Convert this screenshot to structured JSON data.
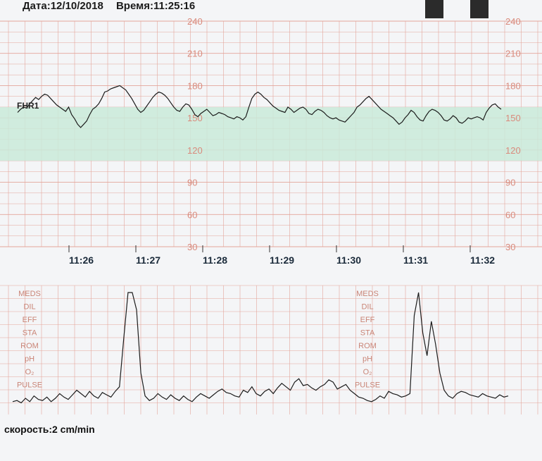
{
  "header": {
    "date_label": "Дата:12/10/2018",
    "time_label": "Время:11:25:16"
  },
  "footer": {
    "speed_label": "скорость:2 cm/min"
  },
  "colors": {
    "grid": "#e3a59a",
    "band": "#c9ead9",
    "trace": "#1c1c1c",
    "paper": "#f4f5f7"
  },
  "chart_data": [
    {
      "type": "line",
      "title": "",
      "series": [
        {
          "name": "FHR1",
          "values": [
            155,
            158,
            160,
            159,
            163,
            166,
            169,
            167,
            170,
            172,
            171,
            168,
            165,
            162,
            160,
            158,
            156,
            160,
            153,
            149,
            144,
            141,
            144,
            147,
            153,
            158,
            160,
            163,
            168,
            174,
            175,
            177,
            178,
            179,
            180,
            178,
            176,
            172,
            168,
            163,
            158,
            155,
            157,
            161,
            165,
            169,
            172,
            174,
            173,
            171,
            168,
            164,
            160,
            157,
            156,
            160,
            163,
            162,
            158,
            153,
            151,
            154,
            156,
            158,
            155,
            152,
            153,
            155,
            154,
            153,
            151,
            150,
            149,
            151,
            150,
            148,
            151,
            160,
            168,
            172,
            174,
            172,
            169,
            167,
            164,
            161,
            159,
            157,
            156,
            155,
            160,
            158,
            155,
            157,
            159,
            160,
            158,
            154,
            153,
            156,
            158,
            157,
            155,
            152,
            150,
            149,
            150,
            148,
            147,
            146,
            149,
            152,
            155,
            160,
            162,
            165,
            168,
            170,
            167,
            164,
            161,
            158,
            156,
            154,
            152,
            150,
            147,
            144,
            146,
            150,
            153,
            157,
            155,
            151,
            148,
            147,
            152,
            156,
            158,
            157,
            155,
            152,
            148,
            147,
            149,
            152,
            150,
            146,
            145,
            147,
            150,
            149,
            150,
            151,
            150,
            148,
            155,
            159,
            162,
            163,
            160,
            158
          ]
        }
      ],
      "y_left_ticks": [
        240,
        210,
        180,
        150,
        120,
        90,
        60,
        30
      ],
      "y_right_ticks": [
        240,
        210,
        180,
        150,
        120,
        90,
        60,
        30
      ],
      "ylim": [
        30,
        240
      ],
      "normal_band": [
        110,
        160
      ],
      "x_ticks": [
        "11:26",
        "11:27",
        "11:28",
        "11:29",
        "11:30",
        "11:31",
        "11:32"
      ],
      "grid": true
    },
    {
      "type": "line",
      "title": "",
      "series": [
        {
          "values": [
            5,
            6,
            4,
            8,
            5,
            10,
            7,
            6,
            9,
            5,
            8,
            12,
            9,
            7,
            11,
            15,
            12,
            9,
            14,
            10,
            8,
            13,
            11,
            9,
            14,
            18,
            60,
            100,
            100,
            85,
            30,
            10,
            6,
            8,
            12,
            9,
            7,
            11,
            8,
            6,
            10,
            7,
            5,
            9,
            12,
            10,
            8,
            11,
            14,
            16,
            13,
            12,
            10,
            9,
            15,
            13,
            18,
            12,
            10,
            14,
            16,
            12,
            17,
            21,
            18,
            15,
            22,
            25,
            19,
            20,
            17,
            15,
            18,
            20,
            24,
            22,
            16,
            18,
            20,
            15,
            12,
            9,
            8,
            6,
            5,
            7,
            10,
            8,
            14,
            12,
            11,
            9,
            10,
            12,
            80,
            100,
            65,
            45,
            75,
            55,
            30,
            15,
            10,
            8,
            12,
            14,
            13,
            11,
            10,
            9,
            12,
            10,
            9,
            8,
            11,
            9,
            10
          ]
        }
      ],
      "row_labels": [
        "MEDS",
        "DIL",
        "EFF",
        "STA",
        "ROM",
        "pH",
        "O₂",
        "PULSE"
      ]
    }
  ]
}
